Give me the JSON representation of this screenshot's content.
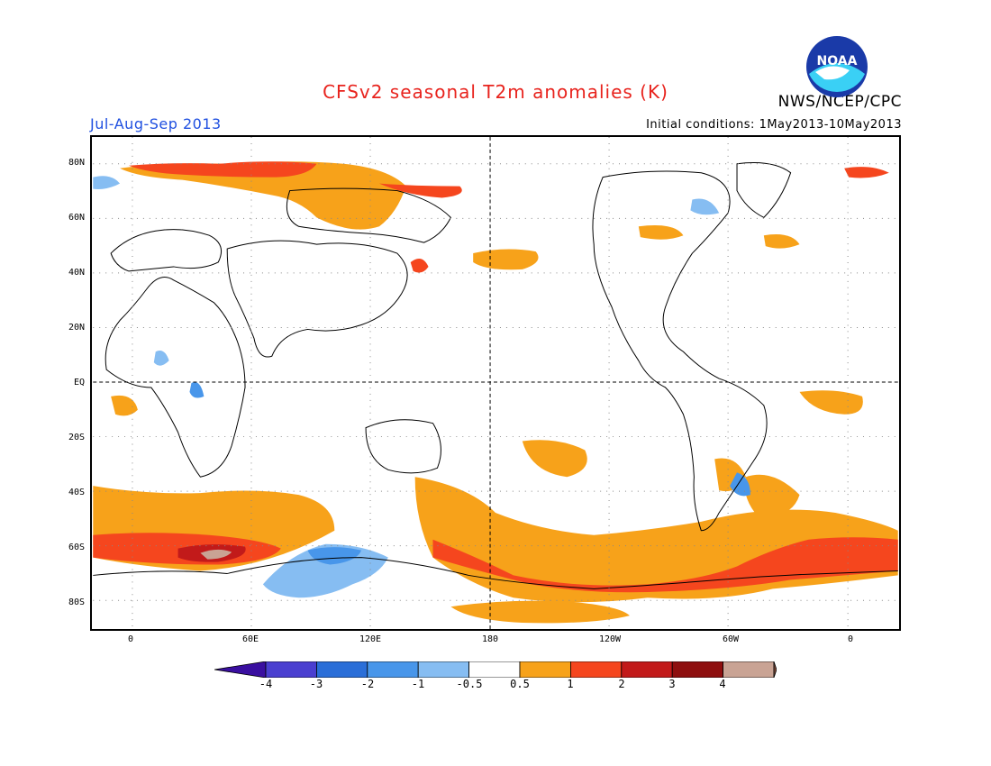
{
  "header": {
    "title": "CFSv2 seasonal T2m anomalies (K)",
    "period": "Jul-Aug-Sep 2013",
    "initial_conditions": "Initial conditions: 1May2013-10May2013",
    "agency": "NWS/NCEP/CPC",
    "logo_text": "NOAA"
  },
  "axes": {
    "lat_labels": [
      "80N",
      "60N",
      "40N",
      "20N",
      "EQ",
      "20S",
      "40S",
      "60S",
      "80S"
    ],
    "lon_labels": [
      "0",
      "60E",
      "120E",
      "180",
      "120W",
      "60W",
      "0"
    ]
  },
  "colorbar": {
    "tick_labels": [
      "-4",
      "-3",
      "-2",
      "-1",
      "-0.5",
      "0.5",
      "1",
      "2",
      "3",
      "4"
    ],
    "colors": [
      "#3a0fa0",
      "#4a3fd0",
      "#2a6ed8",
      "#4896ea",
      "#86bdf2",
      "#ffffff",
      "#f7a21a",
      "#f5461e",
      "#c21a1a",
      "#8e0f0f",
      "#c9a394",
      "#7a4a3a"
    ]
  }
}
